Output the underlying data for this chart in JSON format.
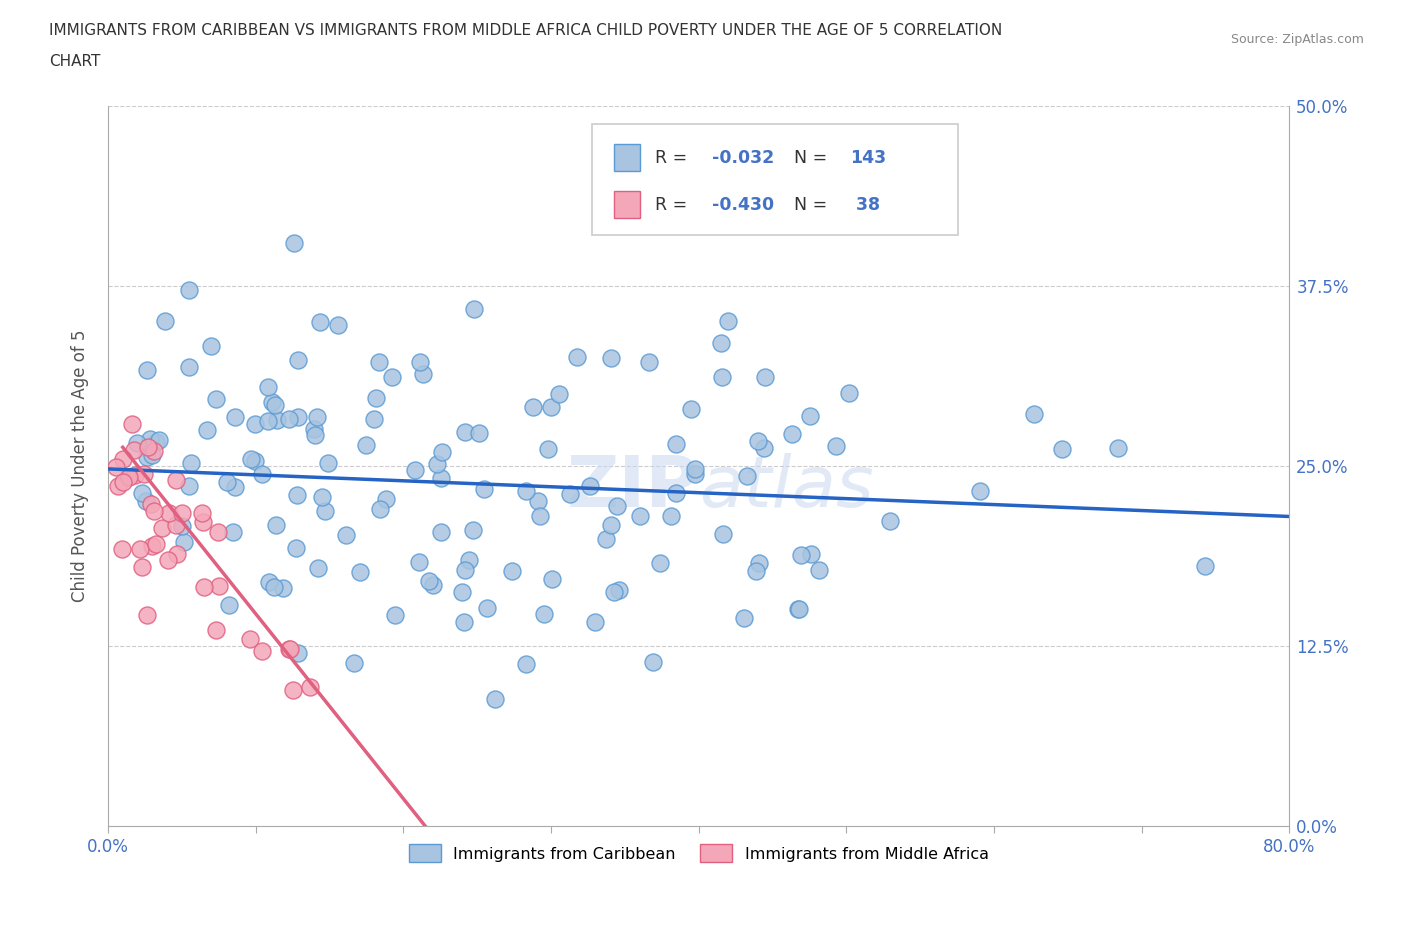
{
  "title_line1": "IMMIGRANTS FROM CARIBBEAN VS IMMIGRANTS FROM MIDDLE AFRICA CHILD POVERTY UNDER THE AGE OF 5 CORRELATION",
  "title_line2": "CHART",
  "source": "Source: ZipAtlas.com",
  "ylabel": "Child Poverty Under the Age of 5",
  "xlim": [
    0,
    0.8
  ],
  "ylim": [
    0,
    0.5
  ],
  "xticks": [
    0.0,
    0.1,
    0.2,
    0.3,
    0.4,
    0.5,
    0.6,
    0.7,
    0.8
  ],
  "xticklabels": [
    "0.0%",
    "",
    "",
    "",
    "",
    "",
    "",
    "",
    "80.0%"
  ],
  "yticks": [
    0.0,
    0.125,
    0.25,
    0.375,
    0.5
  ],
  "yticklabels_right": [
    "0.0%",
    "12.5%",
    "25.0%",
    "37.5%",
    "50.0%"
  ],
  "caribbean_color": "#a8c4e0",
  "caribbean_edge": "#5b9bd5",
  "middle_africa_color": "#f4a7b9",
  "middle_africa_edge": "#e06080",
  "trend_caribbean_color": "#2563c4",
  "trend_middle_africa_color": "#e06080",
  "R_caribbean": -0.032,
  "N_caribbean": 143,
  "R_middle_africa": -0.43,
  "N_middle_africa": 38,
  "watermark": "ZIPatlas",
  "legend_caribbean": "Immigrants from Caribbean",
  "legend_middle_africa": "Immigrants from Middle Africa",
  "carib_trend_x0": 0.0,
  "carib_trend_y0": 0.248,
  "carib_trend_x1": 0.8,
  "carib_trend_y1": 0.215,
  "africa_trend_x0": 0.01,
  "africa_trend_y0": 0.263,
  "africa_trend_x1": 0.215,
  "africa_trend_y1": 0.0
}
